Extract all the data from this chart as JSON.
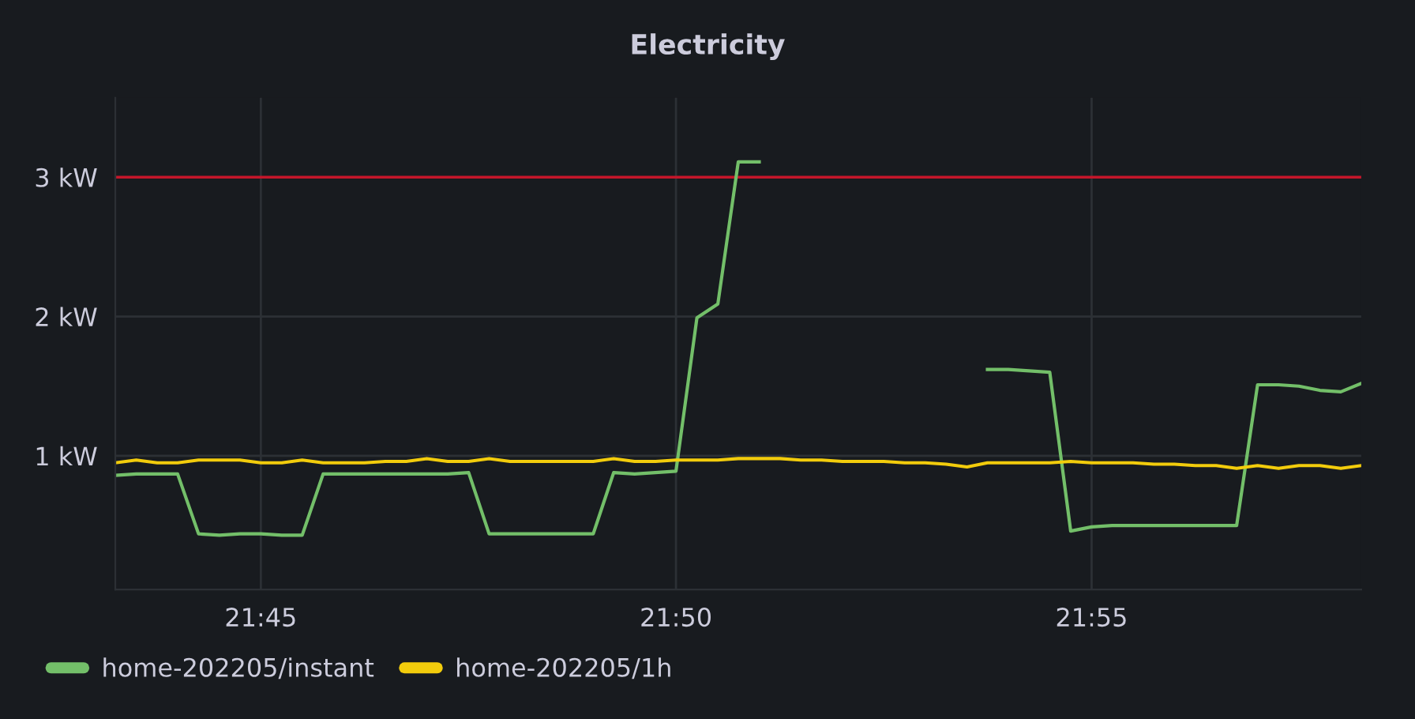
{
  "chart_data": {
    "type": "line",
    "title": "Electricity",
    "xlim": [
      21.7208,
      21.9708
    ],
    "ylim": [
      0.04,
      3.57
    ],
    "xticks": [
      {
        "value": 21.75,
        "label": "21:45"
      },
      {
        "value": 21.8333,
        "label": "21:50"
      },
      {
        "value": 21.9167,
        "label": "21:55"
      }
    ],
    "yticks": [
      {
        "value": 1,
        "label": "1 kW"
      },
      {
        "value": 2,
        "label": "2 kW"
      },
      {
        "value": 3,
        "label": "3 kW"
      }
    ],
    "grid": true,
    "legend": "bottom",
    "marker": "none",
    "line_style": "solid",
    "ref_lines": [
      {
        "axis": "y",
        "value": 3,
        "color": "#c4162a"
      }
    ],
    "series": [
      {
        "name": "home-202205/instant",
        "color": "#73bf69",
        "x": [
          21.7208,
          21.725,
          21.7333,
          21.7375,
          21.7417,
          21.7458,
          21.75,
          21.7542,
          21.7583,
          21.7625,
          21.7875,
          21.7917,
          21.7958,
          21.8167,
          21.8208,
          21.825,
          21.8333,
          21.8375,
          21.8417,
          21.8458,
          21.85,
          21.8667,
          21.8958,
          21.9,
          21.9083,
          21.9125,
          21.9167,
          21.9208,
          21.9458,
          21.95,
          21.9542,
          21.9583,
          21.9625,
          21.9667,
          21.9708
        ],
        "values": [
          0.86,
          0.87,
          0.87,
          0.44,
          0.43,
          0.44,
          0.44,
          0.43,
          0.43,
          0.87,
          0.87,
          0.88,
          0.44,
          0.44,
          0.88,
          0.87,
          0.89,
          1.99,
          2.09,
          3.11,
          3.11,
          null,
          1.62,
          1.62,
          1.6,
          0.46,
          0.49,
          0.5,
          0.5,
          1.51,
          1.51,
          1.5,
          1.47,
          1.46,
          1.52
        ]
      },
      {
        "name": "home-202205/1h",
        "color": "#f2cc0c",
        "x": [
          21.7208,
          21.725,
          21.7292,
          21.7333,
          21.7375,
          21.7458,
          21.75,
          21.7542,
          21.7583,
          21.7625,
          21.7708,
          21.775,
          21.7792,
          21.7833,
          21.7875,
          21.7917,
          21.7958,
          21.8,
          21.8167,
          21.8208,
          21.825,
          21.8292,
          21.8333,
          21.8417,
          21.8458,
          21.8542,
          21.8583,
          21.8625,
          21.8667,
          21.875,
          21.8792,
          21.8833,
          21.8875,
          21.8917,
          21.8958,
          21.9083,
          21.9125,
          21.9167,
          21.925,
          21.9292,
          21.9333,
          21.9375,
          21.9417,
          21.9458,
          21.95,
          21.9542,
          21.9583,
          21.9625,
          21.9667,
          21.9708
        ],
        "values": [
          0.95,
          0.97,
          0.95,
          0.95,
          0.97,
          0.97,
          0.95,
          0.95,
          0.97,
          0.95,
          0.95,
          0.96,
          0.96,
          0.98,
          0.96,
          0.96,
          0.98,
          0.96,
          0.96,
          0.98,
          0.96,
          0.96,
          0.97,
          0.97,
          0.98,
          0.98,
          0.97,
          0.97,
          0.96,
          0.96,
          0.95,
          0.95,
          0.94,
          0.92,
          0.95,
          0.95,
          0.96,
          0.95,
          0.95,
          0.94,
          0.94,
          0.93,
          0.93,
          0.91,
          0.93,
          0.91,
          0.93,
          0.93,
          0.91,
          0.93
        ]
      }
    ]
  }
}
